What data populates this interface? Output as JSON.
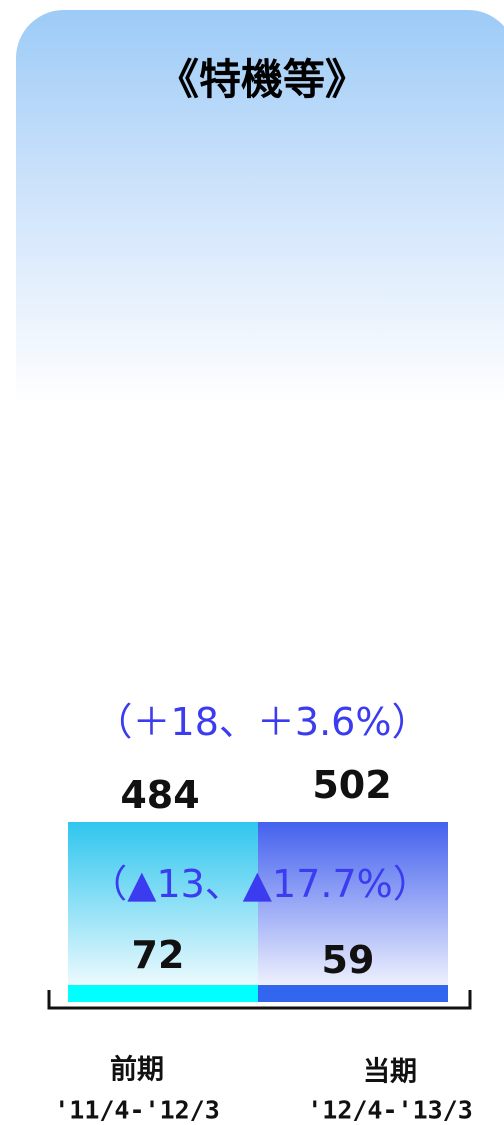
{
  "title": "《特機等》",
  "total_change": "（＋18、＋3.6%）",
  "segment_change": "（▲13、▲17.7%）",
  "periods": [
    {
      "name": "前期",
      "range": "'11/4-'12/3",
      "total": 484,
      "segment": 72
    },
    {
      "name": "当期",
      "range": "'12/4-'13/3",
      "total": 502,
      "segment": 59
    }
  ]
}
